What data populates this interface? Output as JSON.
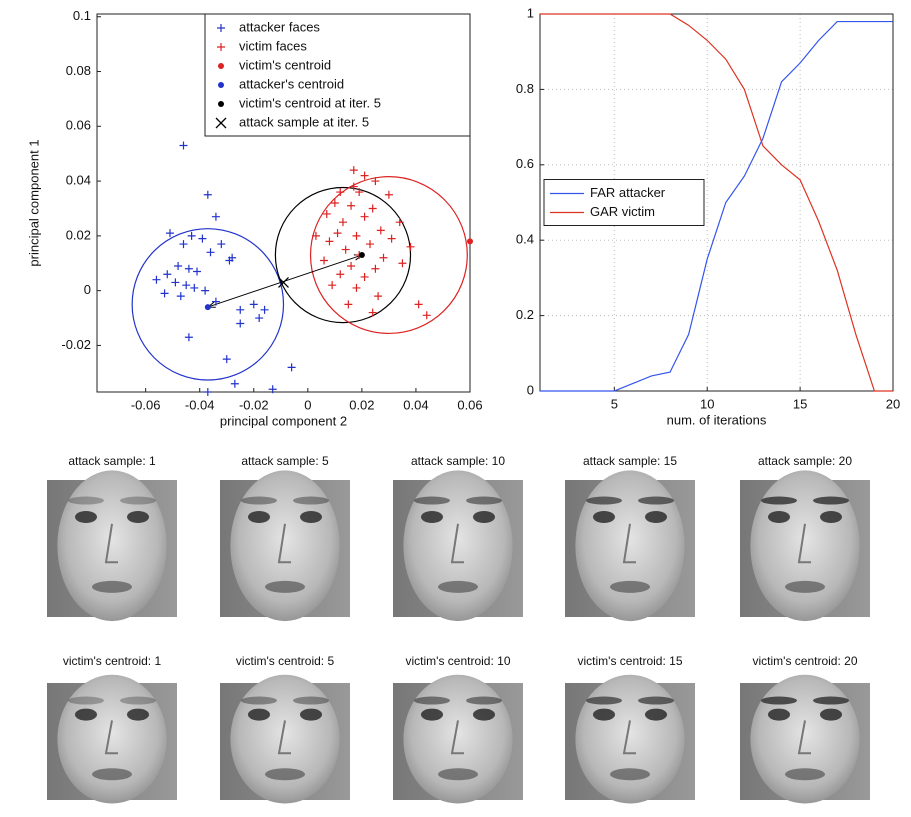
{
  "chart_data": [
    {
      "type": "scatter",
      "xlabel": "principal component 2",
      "ylabel": "principal component 1",
      "xlim": [
        -0.078,
        0.06
      ],
      "ylim": [
        -0.037,
        0.101
      ],
      "xticks": [
        -0.06,
        -0.04,
        -0.02,
        0,
        0.02,
        0.04,
        0.06
      ],
      "yticks": [
        -0.02,
        0,
        0.02,
        0.04,
        0.06,
        0.08,
        0.1
      ],
      "grid": false,
      "legend": "upper right",
      "series": [
        {
          "name": "attacker faces",
          "color": "#2233cc",
          "marker": "+",
          "x": [
            -0.046,
            -0.037,
            -0.034,
            -0.051,
            -0.046,
            -0.043,
            -0.032,
            -0.039,
            -0.036,
            -0.029,
            -0.048,
            -0.044,
            -0.052,
            -0.041,
            -0.028,
            -0.056,
            -0.049,
            -0.045,
            -0.042,
            -0.038,
            -0.053,
            -0.047,
            -0.034,
            -0.025,
            -0.02,
            -0.018,
            -0.025,
            -0.016,
            -0.044,
            -0.03,
            -0.027,
            -0.013,
            -0.006,
            -0.037
          ],
          "y": [
            0.053,
            0.035,
            0.027,
            0.021,
            0.017,
            0.02,
            0.017,
            0.019,
            0.014,
            0.011,
            0.009,
            0.008,
            0.006,
            0.007,
            0.012,
            0.004,
            0.003,
            0.002,
            0.001,
            0.0,
            -0.001,
            -0.002,
            -0.004,
            -0.007,
            -0.005,
            -0.01,
            -0.012,
            -0.007,
            -0.017,
            -0.025,
            -0.034,
            -0.036,
            -0.028,
            -0.037
          ]
        },
        {
          "name": "victim faces",
          "color": "#dd2222",
          "marker": "+",
          "x": [
            0.017,
            0.021,
            0.025,
            0.012,
            0.019,
            0.03,
            0.01,
            0.016,
            0.024,
            0.007,
            0.021,
            0.034,
            0.013,
            0.027,
            0.011,
            0.018,
            0.031,
            0.008,
            0.023,
            0.038,
            0.014,
            0.019,
            0.028,
            0.006,
            0.016,
            0.025,
            0.035,
            0.012,
            0.021,
            0.009,
            0.018,
            0.026,
            0.015,
            0.024,
            0.041,
            0.044,
            0.003,
            0.017
          ],
          "y": [
            0.044,
            0.042,
            0.04,
            0.036,
            0.036,
            0.035,
            0.032,
            0.031,
            0.03,
            0.028,
            0.027,
            0.025,
            0.025,
            0.022,
            0.021,
            0.02,
            0.019,
            0.018,
            0.017,
            0.016,
            0.015,
            0.013,
            0.012,
            0.011,
            0.009,
            0.008,
            0.01,
            0.006,
            0.005,
            0.002,
            0.001,
            -0.002,
            -0.005,
            -0.008,
            -0.005,
            -0.009,
            0.02,
            0.038
          ]
        },
        {
          "name": "victim's centroid",
          "color": "#dd2222",
          "marker": ".",
          "x": [
            0.06
          ],
          "y": [
            0.018
          ]
        },
        {
          "name": "attacker's centroid",
          "color": "#2233cc",
          "marker": ".",
          "x": [
            -0.037
          ],
          "y": [
            -0.006
          ]
        },
        {
          "name": "victim's centroid at iter. 5",
          "color": "#000000",
          "marker": ".",
          "x": [
            0.02
          ],
          "y": [
            0.013
          ]
        },
        {
          "name": "attack sample at iter. 5",
          "color": "#000000",
          "marker": "x",
          "x": [
            -0.009
          ],
          "y": [
            0.003
          ]
        }
      ],
      "circles": [
        {
          "cx": -0.037,
          "cy": -0.005,
          "r": 0.028,
          "color": "#2233cc"
        },
        {
          "cx": 0.013,
          "cy": 0.013,
          "r": 0.025,
          "color": "#000000"
        },
        {
          "cx": 0.03,
          "cy": 0.013,
          "r": 0.029,
          "color": "#dd2222"
        }
      ]
    },
    {
      "type": "line",
      "xlabel": "num. of iterations",
      "xlim": [
        1,
        20
      ],
      "ylim": [
        0,
        1
      ],
      "xticks": [
        5,
        10,
        15,
        20
      ],
      "yticks": [
        0,
        0.2,
        0.4,
        0.6,
        0.8,
        1
      ],
      "grid": true,
      "legend": "center left",
      "x": [
        1,
        2,
        3,
        4,
        5,
        6,
        7,
        8,
        9,
        10,
        11,
        12,
        13,
        14,
        15,
        16,
        17,
        18,
        19,
        20
      ],
      "series": [
        {
          "name": "FAR attacker",
          "color": "#3355ee",
          "values": [
            0,
            0,
            0,
            0,
            0,
            0.02,
            0.04,
            0.05,
            0.15,
            0.35,
            0.5,
            0.57,
            0.67,
            0.82,
            0.87,
            0.93,
            0.98,
            0.98,
            0.98,
            0.98
          ]
        },
        {
          "name": "GAR victim",
          "color": "#dd3322",
          "values": [
            1,
            1,
            1,
            1,
            1,
            1,
            1,
            1,
            0.97,
            0.93,
            0.88,
            0.8,
            0.65,
            0.6,
            0.56,
            0.45,
            0.32,
            0.15,
            0,
            0
          ]
        }
      ]
    }
  ],
  "images": {
    "rows": [
      {
        "titles": [
          "attack sample: 1",
          "attack sample: 5",
          "attack sample: 10",
          "attack sample: 15",
          "attack sample: 20"
        ]
      },
      {
        "titles": [
          "victim's centroid: 1",
          "victim's centroid: 5",
          "victim's centroid: 10",
          "victim's centroid: 15",
          "victim's centroid: 20"
        ]
      }
    ]
  }
}
